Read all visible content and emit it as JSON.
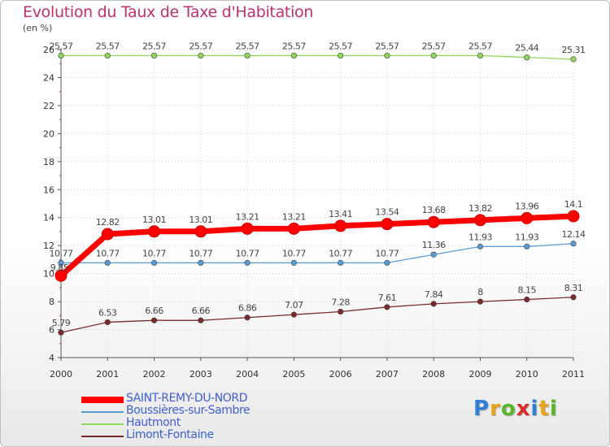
{
  "chart_data": {
    "type": "line",
    "title": "Evolution du Taux de Taxe d'Habitation",
    "ylabel": "(en %)",
    "xlabel": "",
    "x": [
      "2000",
      "2001",
      "2002",
      "2003",
      "2004",
      "2005",
      "2006",
      "2007",
      "2008",
      "2009",
      "2010",
      "2011"
    ],
    "ylim": [
      4,
      26
    ],
    "yticks": [
      4,
      6,
      8,
      10,
      12,
      14,
      16,
      18,
      20,
      22,
      24,
      26
    ],
    "grid": true,
    "legend_position": "bottom-left",
    "series": [
      {
        "name": "SAINT-REMY-DU-NORD",
        "color": "#ff0000",
        "values": [
          9.85,
          12.82,
          13.01,
          13.01,
          13.21,
          13.21,
          13.41,
          13.54,
          13.68,
          13.82,
          13.96,
          14.1
        ],
        "labels": [
          "9.85",
          "12.82",
          "13.01",
          "13.01",
          "13.21",
          "13.21",
          "13.41",
          "13.54",
          "13.68",
          "13.82",
          "13.96",
          "14.1"
        ]
      },
      {
        "name": "Boussières-sur-Sambre",
        "color": "#5b9bd5",
        "values": [
          10.77,
          10.77,
          10.77,
          10.77,
          10.77,
          10.77,
          10.77,
          10.77,
          11.36,
          11.93,
          11.93,
          12.14
        ],
        "labels": [
          "10.77",
          "10.77",
          "10.77",
          "10.77",
          "10.77",
          "10.77",
          "10.77",
          "10.77",
          "11.36",
          "11.93",
          "11.93",
          "12.14"
        ]
      },
      {
        "name": "Hautmont",
        "color": "#8fd75a",
        "values": [
          25.57,
          25.57,
          25.57,
          25.57,
          25.57,
          25.57,
          25.57,
          25.57,
          25.57,
          25.57,
          25.44,
          25.31
        ],
        "labels": [
          "25.57",
          "25.57",
          "25.57",
          "25.57",
          "25.57",
          "25.57",
          "25.57",
          "25.57",
          "25.57",
          "25.57",
          "25.44",
          "25.31"
        ]
      },
      {
        "name": "Limont-Fontaine",
        "color": "#7a2a2a",
        "values": [
          5.79,
          6.53,
          6.66,
          6.66,
          6.86,
          7.07,
          7.28,
          7.61,
          7.84,
          8,
          8.15,
          8.31
        ],
        "labels": [
          "5.79",
          "6.53",
          "6.66",
          "6.66",
          "6.86",
          "7.07",
          "7.28",
          "7.61",
          "7.84",
          "8",
          "8.15",
          "8.31"
        ]
      }
    ]
  },
  "legend": {
    "items": [
      "SAINT-REMY-DU-NORD",
      "Boussières-sur-Sambre",
      "Hautmont",
      "Limont-Fontaine"
    ]
  },
  "brand": {
    "letters": [
      "P",
      "r",
      "o",
      "x",
      "i",
      "t",
      "i"
    ],
    "colors": [
      "#2f7fd6",
      "#e8a21a",
      "#5bb52e",
      "#e02b2b",
      "#2f7fd6",
      "#e8a21a",
      "#5bb52e"
    ]
  }
}
